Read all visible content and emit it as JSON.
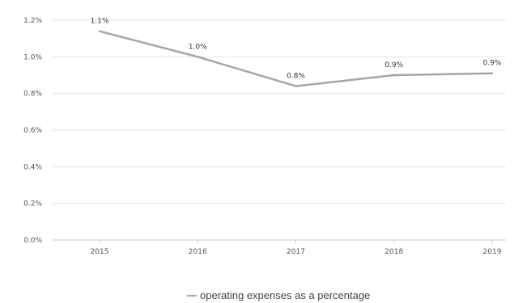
{
  "chart_data": {
    "type": "line",
    "title": "",
    "xlabel": "",
    "ylabel": "",
    "categories": [
      "2015",
      "2016",
      "2017",
      "2018",
      "2019"
    ],
    "series": [
      {
        "name": "operating expenses as a percentage",
        "values": [
          1.14,
          1.0,
          0.84,
          0.9,
          0.91
        ],
        "labels": [
          "1.1%",
          "1.0%",
          "0.8%",
          "0.9%",
          "0.9%"
        ]
      }
    ],
    "ylim": [
      0,
      1.2
    ],
    "yticks": [
      "0.0%",
      "0.2%",
      "0.4%",
      "0.6%",
      "0.8%",
      "1.0%",
      "1.2%"
    ],
    "grid": true,
    "legend_position": "bottom",
    "colors": {
      "line": "#a9a5a5",
      "grid": "#e3e3e3",
      "axis": "#c9c9c9"
    }
  }
}
